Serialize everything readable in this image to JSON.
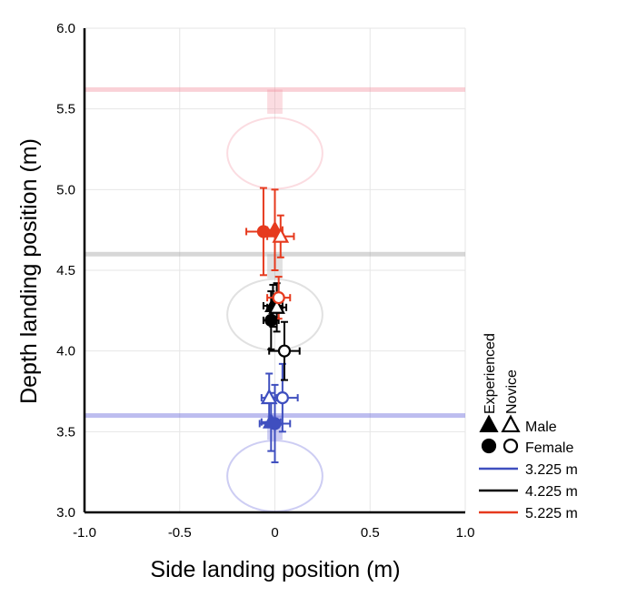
{
  "chart_data": {
    "type": "scatter",
    "xlabel": "Side landing position (m)",
    "ylabel": "Depth landing position (m)",
    "xlim": [
      -1.0,
      1.0
    ],
    "ylim": [
      3.0,
      6.0
    ],
    "x_ticks": [
      "-1.0",
      "-0.5",
      "0",
      "0.5",
      "1.0"
    ],
    "y_ticks": [
      "3.0",
      "3.5",
      "4.0",
      "4.5",
      "5.0",
      "5.5",
      "6.0"
    ],
    "grid": true,
    "targets": [
      {
        "distance": "3.225 m",
        "color": "#5b5bd6",
        "line_y": 3.6,
        "center_y": 3.225,
        "radius": 0.22
      },
      {
        "distance": "4.225 m",
        "color": "#9b9b9b",
        "line_y": 4.6,
        "center_y": 4.225,
        "radius": 0.22
      },
      {
        "distance": "5.225 m",
        "color": "#f28c9c",
        "line_y": 5.62,
        "center_y": 5.225,
        "radius": 0.22
      }
    ],
    "series": [
      {
        "name": "3.225 m",
        "color": "#3f4fbf",
        "points": [
          {
            "marker": "triangle-filled",
            "x": -0.02,
            "y": 3.56,
            "xerr": 0.05,
            "yerr": 0.18
          },
          {
            "marker": "triangle-open",
            "x": -0.03,
            "y": 3.71,
            "xerr": 0.04,
            "yerr": 0.15
          },
          {
            "marker": "circle-filled",
            "x": 0.0,
            "y": 3.55,
            "xerr": 0.08,
            "yerr": 0.24
          },
          {
            "marker": "circle-open",
            "x": 0.04,
            "y": 3.71,
            "xerr": 0.08,
            "yerr": 0.21
          }
        ]
      },
      {
        "name": "4.225 m",
        "color": "#000000",
        "points": [
          {
            "marker": "triangle-filled",
            "x": -0.01,
            "y": 4.28,
            "xerr": 0.05,
            "yerr": 0.13
          },
          {
            "marker": "triangle-open",
            "x": 0.01,
            "y": 4.27,
            "xerr": 0.05,
            "yerr": 0.15
          },
          {
            "marker": "circle-filled",
            "x": -0.02,
            "y": 4.19,
            "xerr": 0.04,
            "yerr": 0.18
          },
          {
            "marker": "circle-open",
            "x": 0.05,
            "y": 4.0,
            "xerr": 0.08,
            "yerr": 0.18
          }
        ]
      },
      {
        "name": "5.225 m",
        "color": "#e63a1e",
        "points": [
          {
            "marker": "triangle-filled",
            "x": 0.0,
            "y": 4.75,
            "xerr": 0.04,
            "yerr": 0.25
          },
          {
            "marker": "triangle-open",
            "x": 0.03,
            "y": 4.71,
            "xerr": 0.07,
            "yerr": 0.13
          },
          {
            "marker": "circle-filled",
            "x": -0.06,
            "y": 4.74,
            "xerr": 0.09,
            "yerr": 0.27
          },
          {
            "marker": "circle-open",
            "x": 0.02,
            "y": 4.33,
            "xerr": 0.06,
            "yerr": 0.13
          }
        ]
      }
    ],
    "legend": {
      "column_headers": [
        "Experienced",
        "Novice"
      ],
      "shape_entries": [
        {
          "label": "Male",
          "filled": "triangle-filled",
          "open": "triangle-open"
        },
        {
          "label": "Female",
          "filled": "circle-filled",
          "open": "circle-open"
        }
      ],
      "line_entries": [
        {
          "label": "3.225 m",
          "color": "#3f4fbf"
        },
        {
          "label": "4.225 m",
          "color": "#000000"
        },
        {
          "label": "5.225 m",
          "color": "#e63a1e"
        }
      ],
      "placement": "right"
    }
  }
}
